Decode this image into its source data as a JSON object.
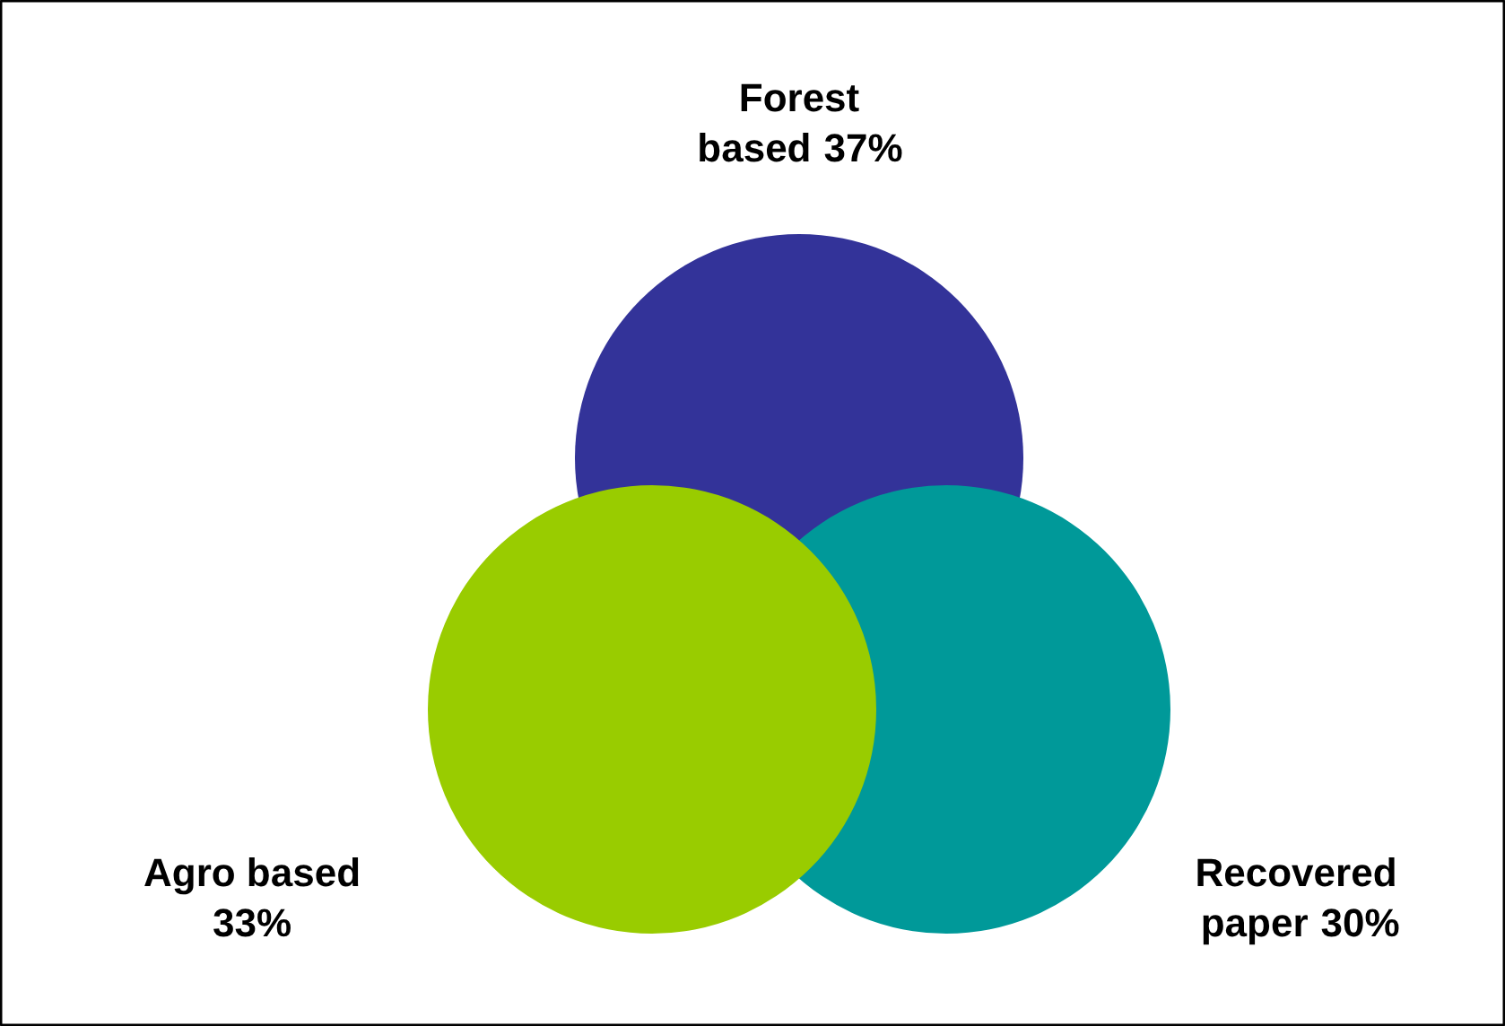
{
  "chart_data": {
    "type": "other",
    "categories": [
      "Forest based",
      "Recovered paper",
      "Agro based"
    ],
    "values": [
      37,
      30,
      33
    ],
    "value_labels": [
      "37%",
      "30%",
      "33%"
    ],
    "colors": [
      "#333399",
      "#009999",
      "#99cc00"
    ]
  }
}
